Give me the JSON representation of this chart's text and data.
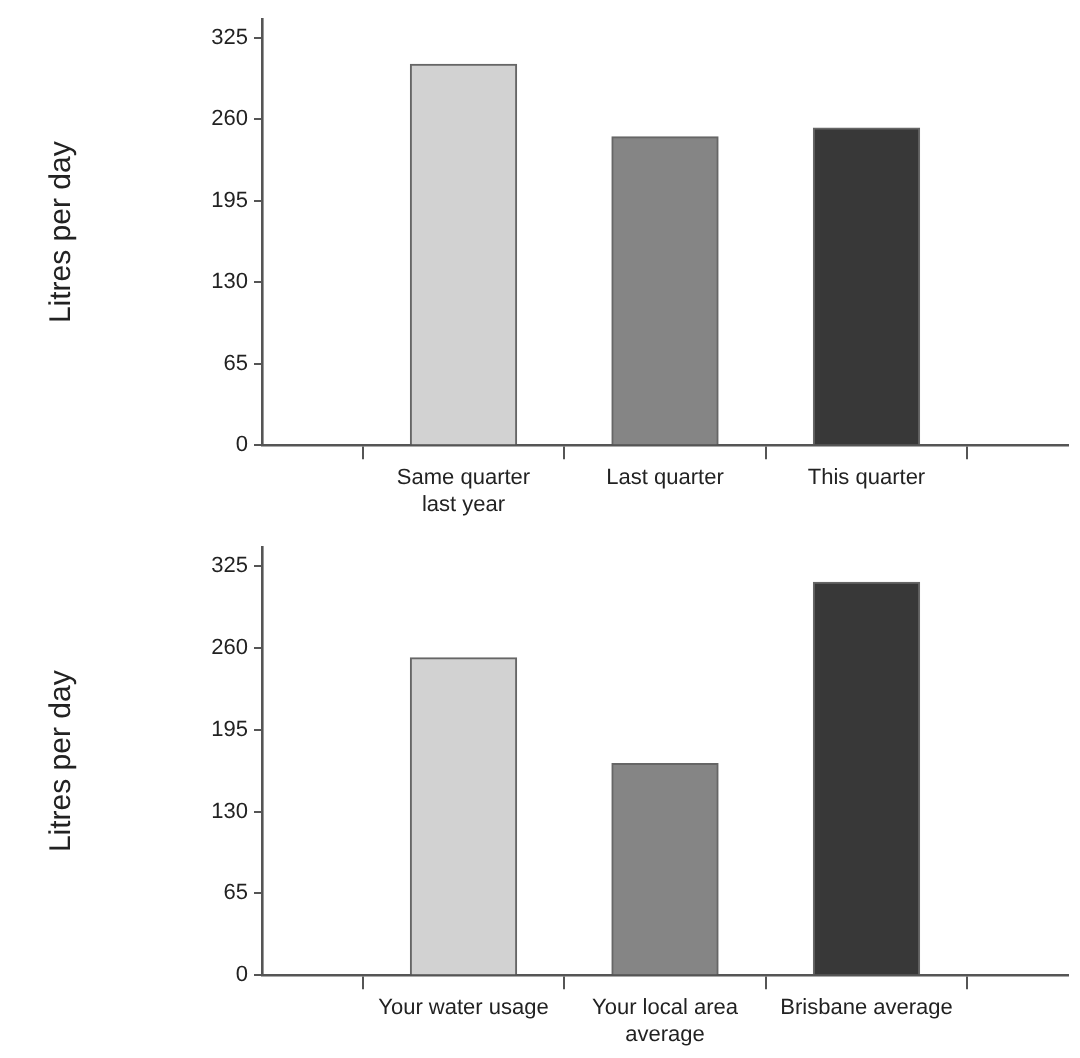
{
  "chart_data": [
    {
      "type": "bar",
      "ylabel": "Litres per day",
      "categories": [
        "Same quarter last year",
        "Last quarter",
        "This quarter"
      ],
      "values": [
        304,
        246,
        253
      ],
      "colors": [
        "#d2d2d2",
        "#858585",
        "#383838"
      ],
      "ylim": [
        0,
        340
      ],
      "yticks": [
        0,
        65,
        130,
        195,
        260,
        325
      ],
      "grid": false,
      "legend": false
    },
    {
      "type": "bar",
      "ylabel": "Litres per day",
      "categories": [
        "Your water usage",
        "Your local area average",
        "Brisbane average"
      ],
      "values": [
        252,
        168,
        312
      ],
      "colors": [
        "#d2d2d2",
        "#858585",
        "#383838"
      ],
      "ylim": [
        0,
        340
      ],
      "yticks": [
        0,
        65,
        130,
        195,
        260,
        325
      ],
      "grid": false,
      "legend": false
    }
  ]
}
